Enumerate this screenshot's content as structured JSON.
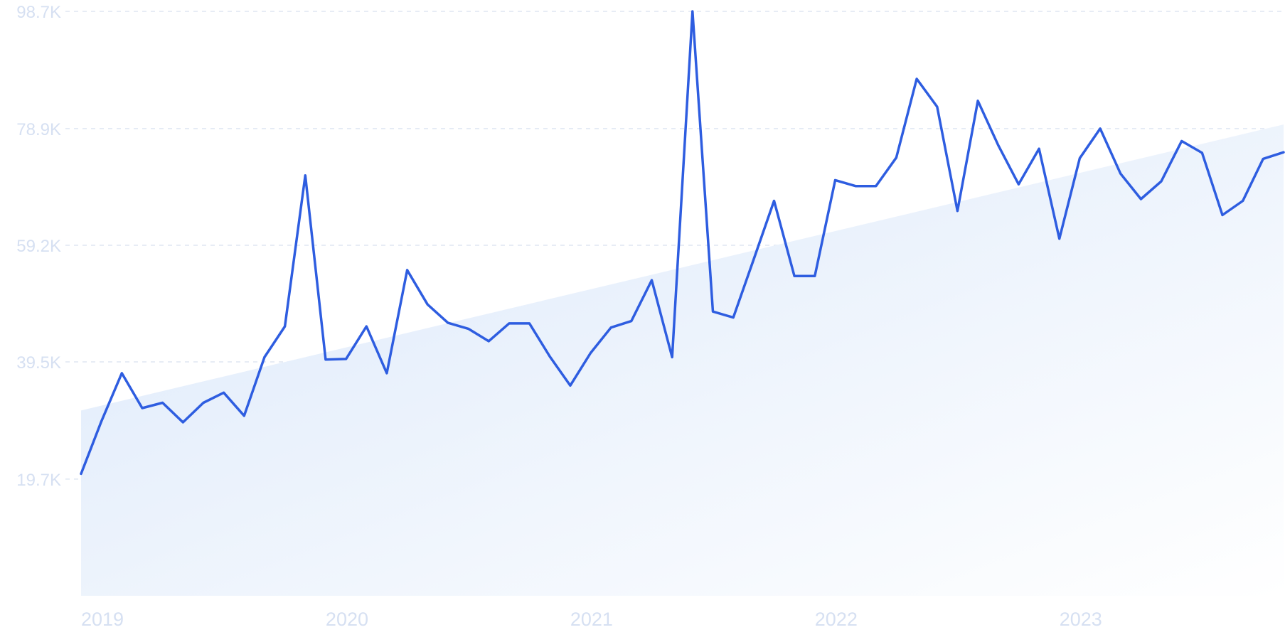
{
  "chart_data": {
    "type": "line",
    "title": "",
    "xlabel": "",
    "ylabel": "",
    "colors": {
      "line": "#2e5de0",
      "trend_fill_start": "#dbe8fa",
      "trend_fill_end": "#ffffff",
      "grid": "#dfe6f2",
      "tick_text": "#d6e0f2"
    },
    "y_ticks": [
      "19.7K",
      "39.5K",
      "59.2K",
      "78.9K",
      "98.7K"
    ],
    "y_tick_values": [
      19700,
      39500,
      59200,
      78900,
      98700
    ],
    "x_ticks": [
      "2019",
      "2020",
      "2021",
      "2022",
      "2023"
    ],
    "ylim": [
      0,
      98700
    ],
    "xlim": [
      "2019-01",
      "2023-12"
    ],
    "grid": true,
    "legend": "none",
    "series": [
      {
        "x": [
          "2019-01",
          "2019-02",
          "2019-03",
          "2019-04",
          "2019-05",
          "2019-06",
          "2019-07",
          "2019-08",
          "2019-09",
          "2019-10",
          "2019-11",
          "2019-12",
          "2020-01",
          "2020-02",
          "2020-03",
          "2020-04",
          "2020-05",
          "2020-06",
          "2020-07",
          "2020-08",
          "2020-09",
          "2020-10",
          "2020-11",
          "2020-12",
          "2021-01",
          "2021-02",
          "2021-03",
          "2021-04",
          "2021-05",
          "2021-06",
          "2021-07",
          "2021-08",
          "2021-09",
          "2021-10",
          "2021-11",
          "2021-12",
          "2022-01",
          "2022-02",
          "2022-03",
          "2022-04",
          "2022-05",
          "2022-06",
          "2022-07",
          "2022-08",
          "2022-09",
          "2022-10",
          "2022-11",
          "2022-12",
          "2023-01",
          "2023-02",
          "2023-03",
          "2023-04",
          "2023-05",
          "2023-06",
          "2023-07",
          "2023-08",
          "2023-09",
          "2023-10",
          "2023-11",
          "2023-12"
        ],
        "values": [
          20600,
          29500,
          37600,
          31700,
          32600,
          29300,
          32600,
          34300,
          30400,
          40300,
          45500,
          71000,
          39900,
          40000,
          45500,
          37600,
          55000,
          49200,
          46100,
          45100,
          43000,
          46000,
          46000,
          40400,
          35500,
          41000,
          45300,
          46400,
          53300,
          40300,
          98700,
          48000,
          47000,
          56800,
          66700,
          54000,
          54000,
          70200,
          69200,
          69200,
          74000,
          87300,
          82600,
          65000,
          83600,
          76100,
          69500,
          75500,
          60300,
          73900,
          78900,
          71300,
          67000,
          70000,
          76800,
          74800,
          64300,
          66700,
          73800,
          74900
        ]
      }
    ],
    "trend": {
      "start": 31300,
      "end": 79600
    }
  }
}
